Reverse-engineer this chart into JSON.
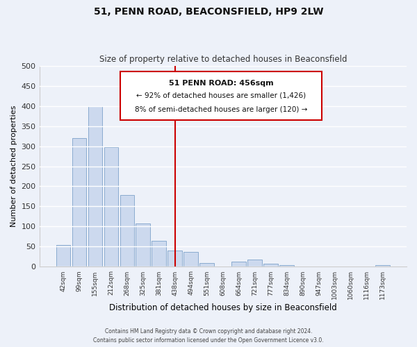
{
  "title": "51, PENN ROAD, BEACONSFIELD, HP9 2LW",
  "subtitle": "Size of property relative to detached houses in Beaconsfield",
  "xlabel": "Distribution of detached houses by size in Beaconsfield",
  "ylabel": "Number of detached properties",
  "bar_labels": [
    "42sqm",
    "99sqm",
    "155sqm",
    "212sqm",
    "268sqm",
    "325sqm",
    "381sqm",
    "438sqm",
    "494sqm",
    "551sqm",
    "608sqm",
    "664sqm",
    "721sqm",
    "777sqm",
    "834sqm",
    "890sqm",
    "947sqm",
    "1003sqm",
    "1060sqm",
    "1116sqm",
    "1173sqm"
  ],
  "bar_values": [
    55,
    320,
    400,
    298,
    178,
    108,
    65,
    40,
    37,
    10,
    0,
    13,
    18,
    8,
    4,
    0,
    0,
    0,
    0,
    0,
    5
  ],
  "bar_color": "#ccd9ee",
  "bar_edge_color": "#8aabcf",
  "vline_x_index": 7,
  "vline_color": "#cc0000",
  "ylim": [
    0,
    500
  ],
  "yticks": [
    0,
    50,
    100,
    150,
    200,
    250,
    300,
    350,
    400,
    450,
    500
  ],
  "annotation_title": "51 PENN ROAD: 456sqm",
  "annotation_line1": "← 92% of detached houses are smaller (1,426)",
  "annotation_line2": "8% of semi-detached houses are larger (120) →",
  "annotation_box_color": "#ffffff",
  "annotation_box_edge": "#cc0000",
  "footer_line1": "Contains HM Land Registry data © Crown copyright and database right 2024.",
  "footer_line2": "Contains public sector information licensed under the Open Government Licence v3.0.",
  "background_color": "#edf1f9",
  "grid_color": "#ffffff"
}
